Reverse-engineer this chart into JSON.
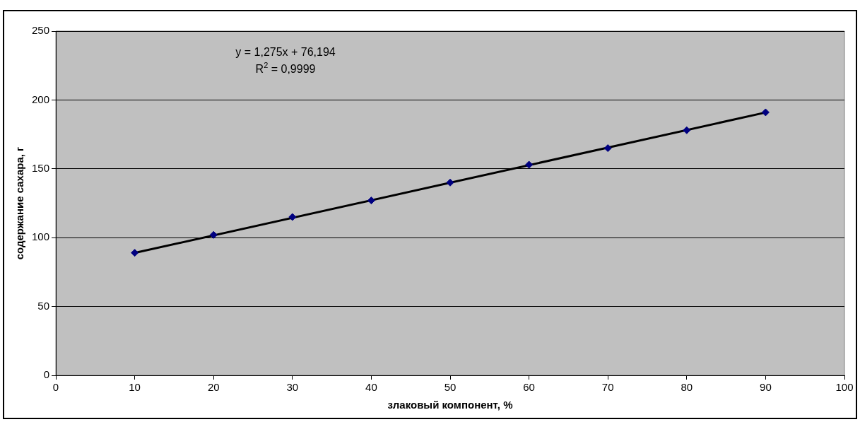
{
  "chart_data": {
    "type": "scatter",
    "xlabel": "злаковый компонент, %",
    "ylabel": "содержание сахара, г",
    "x": [
      10,
      20,
      30,
      40,
      50,
      60,
      70,
      80,
      90
    ],
    "series": [
      {
        "color": "#000080",
        "marker": "diamond",
        "values": [
          89,
          102,
          115,
          127,
          140,
          153,
          165,
          178,
          191
        ]
      },
      {
        "type": "line",
        "color": "#000000",
        "marker": "none",
        "x": [
          10,
          90
        ],
        "values": [
          88.9,
          190.9
        ]
      }
    ],
    "xlim": [
      0,
      100
    ],
    "xticks": [
      0,
      10,
      20,
      30,
      40,
      50,
      60,
      70,
      80,
      90,
      100
    ],
    "ylim": [
      0,
      250
    ],
    "yticks": [
      0,
      50,
      100,
      150,
      200,
      250
    ],
    "grid": "y",
    "legend": false,
    "annotations": [
      "y = 1,275x + 76,194",
      "R$^{2}$ = 0,9999"
    ]
  }
}
